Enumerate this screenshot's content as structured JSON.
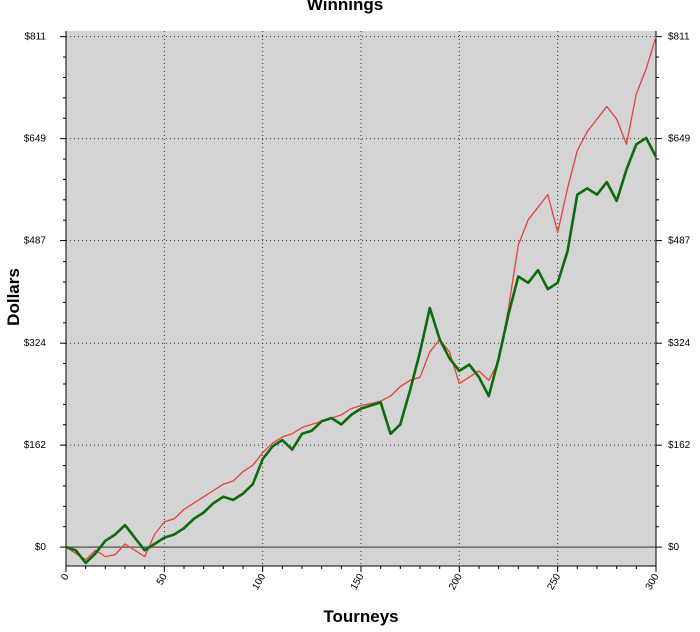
{
  "chart_data": {
    "type": "line",
    "title": "Winnings",
    "xlabel": "Tourneys",
    "ylabel": "Dollars",
    "xlim": [
      0,
      300
    ],
    "ylim": [
      -30,
      820
    ],
    "x_ticks": [
      0,
      50,
      100,
      150,
      200,
      250,
      300
    ],
    "y_ticks": [
      0,
      162,
      324,
      487,
      649,
      811
    ],
    "y_tick_labels": [
      "$0",
      "$162",
      "$324",
      "$487",
      "$649",
      "$811"
    ],
    "grid": true,
    "colors": {
      "plot_bg": "#d4d4d4",
      "series_red": "#e8413c",
      "series_green": "#0d6b0d"
    },
    "series": [
      {
        "color": "#e8413c",
        "x": [
          0,
          5,
          10,
          15,
          20,
          25,
          30,
          35,
          40,
          45,
          50,
          55,
          60,
          65,
          70,
          75,
          80,
          85,
          90,
          95,
          100,
          105,
          110,
          115,
          120,
          125,
          130,
          135,
          140,
          145,
          150,
          155,
          160,
          165,
          170,
          175,
          180,
          185,
          190,
          195,
          200,
          205,
          210,
          215,
          220,
          225,
          230,
          235,
          240,
          245,
          250,
          255,
          260,
          265,
          270,
          275,
          280,
          285,
          290,
          295,
          300
        ],
        "values": [
          0,
          -10,
          -20,
          -5,
          -15,
          -12,
          5,
          -5,
          -15,
          20,
          40,
          45,
          60,
          70,
          80,
          90,
          100,
          105,
          120,
          130,
          150,
          165,
          175,
          180,
          190,
          195,
          200,
          205,
          210,
          220,
          225,
          228,
          232,
          240,
          255,
          265,
          270,
          310,
          330,
          310,
          260,
          270,
          280,
          265,
          295,
          380,
          480,
          520,
          540,
          560,
          500,
          570,
          630,
          660,
          680,
          700,
          680,
          640,
          720,
          760,
          811
        ]
      },
      {
        "color": "#0d6b0d",
        "x": [
          0,
          5,
          10,
          15,
          20,
          25,
          30,
          35,
          40,
          45,
          50,
          55,
          60,
          65,
          70,
          75,
          80,
          85,
          90,
          95,
          100,
          105,
          110,
          115,
          120,
          125,
          130,
          135,
          140,
          145,
          150,
          155,
          160,
          165,
          170,
          175,
          180,
          185,
          190,
          195,
          200,
          205,
          210,
          215,
          220,
          225,
          230,
          235,
          240,
          245,
          250,
          255,
          260,
          265,
          270,
          275,
          280,
          285,
          290,
          295,
          300
        ],
        "values": [
          0,
          -5,
          -25,
          -10,
          10,
          20,
          35,
          15,
          -5,
          5,
          15,
          20,
          30,
          45,
          55,
          70,
          80,
          75,
          85,
          100,
          140,
          160,
          170,
          155,
          180,
          185,
          200,
          205,
          195,
          210,
          220,
          225,
          230,
          180,
          195,
          250,
          310,
          380,
          330,
          300,
          280,
          290,
          270,
          240,
          300,
          370,
          430,
          420,
          440,
          410,
          420,
          470,
          560,
          570,
          560,
          580,
          550,
          600,
          640,
          650,
          620
        ]
      }
    ]
  }
}
